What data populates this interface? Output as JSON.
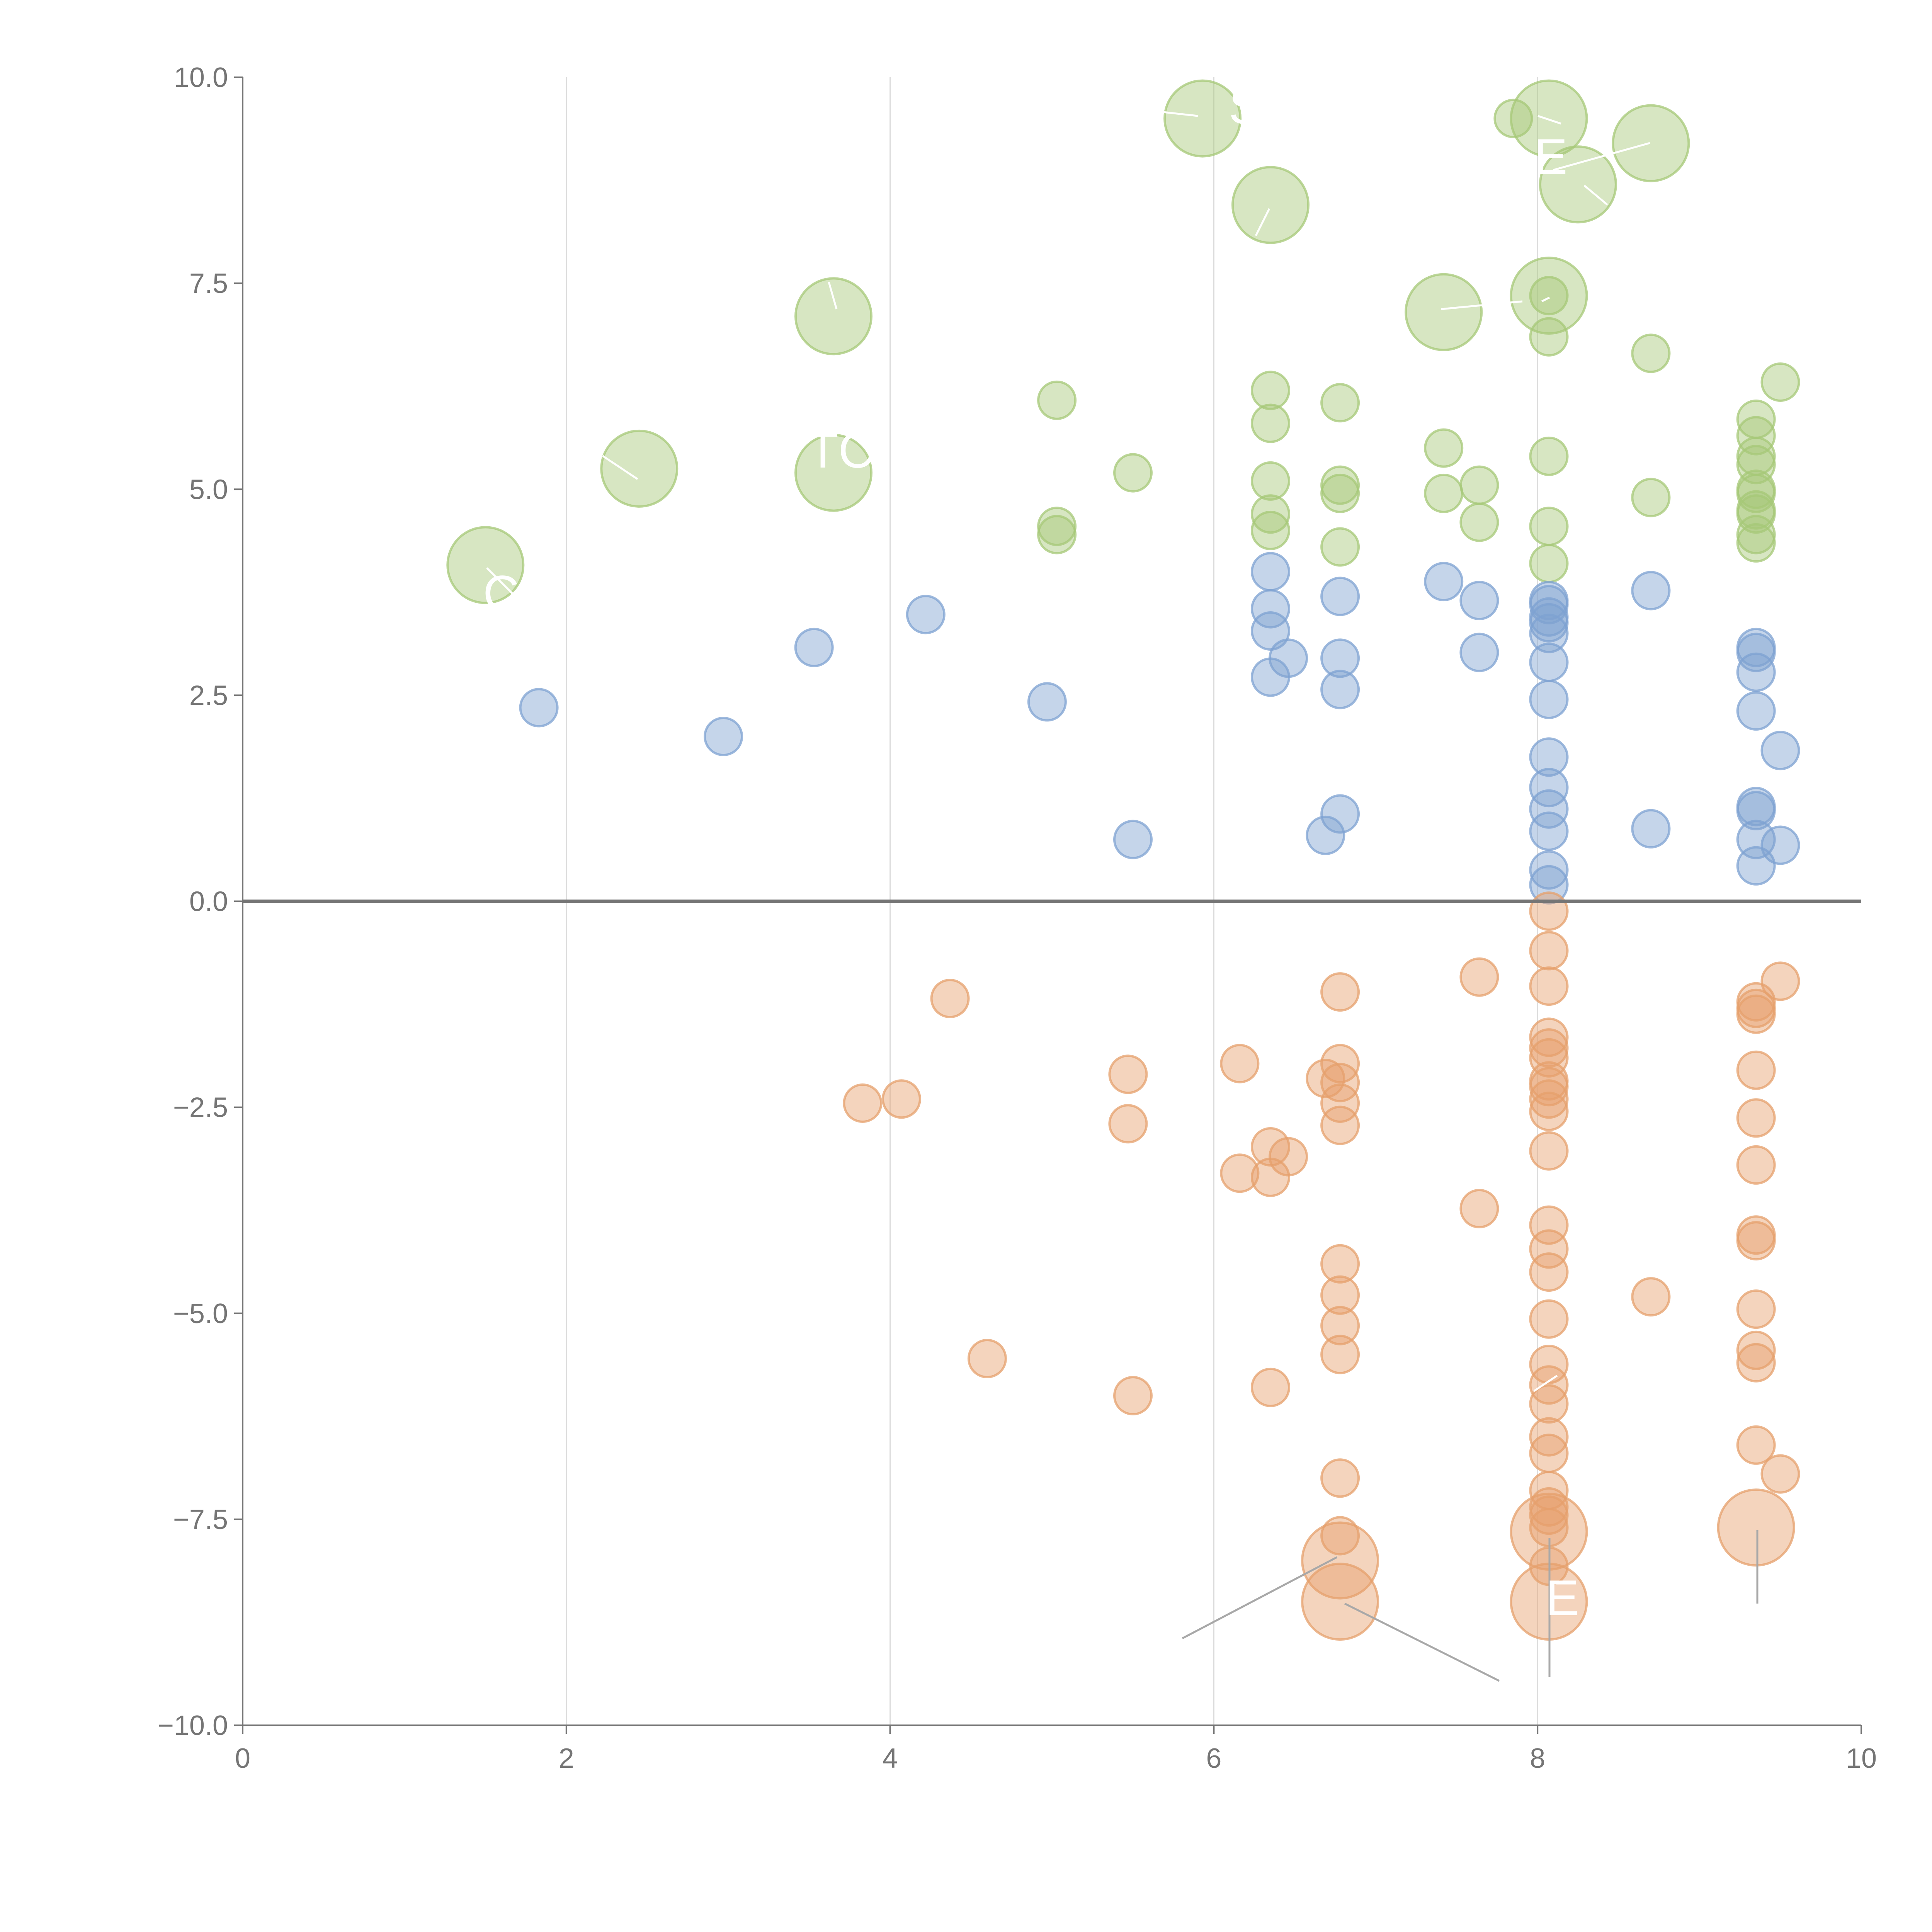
{
  "chart_data": {
    "type": "scatter",
    "title": "",
    "xlabel": "",
    "ylabel": "",
    "xlim": [
      0,
      10
    ],
    "ylim": [
      -10,
      10
    ],
    "grid": "vertical",
    "x_ticks": [
      "0",
      "2",
      "4",
      "6",
      "8",
      "10"
    ],
    "y_ticks": [
      "−10.0",
      "−7.5",
      "−5.0",
      "−2.5",
      "0.0",
      "2.5",
      "5.0",
      "7.5",
      "10.0"
    ],
    "colors": {
      "green": "#a6c877",
      "blue": "#7ea1d1",
      "orange": "#e6a06c"
    },
    "callout_labels": [
      "S",
      "E",
      "TC",
      "C",
      "E"
    ],
    "series": [
      {
        "name": "green",
        "color": "#a6c877",
        "points": [
          [
            5.93,
            9.5,
            "l"
          ],
          [
            7.85,
            9.5,
            "s"
          ],
          [
            8.07,
            9.5,
            "l"
          ],
          [
            8.7,
            9.2,
            "l"
          ],
          [
            8.25,
            8.7,
            "l"
          ],
          [
            6.35,
            8.45,
            "l"
          ],
          [
            3.65,
            7.1,
            "l"
          ],
          [
            7.42,
            7.15,
            "l"
          ],
          [
            8.07,
            7.35,
            "l"
          ],
          [
            8.07,
            7.35,
            "s"
          ],
          [
            8.07,
            6.85,
            "s"
          ],
          [
            8.7,
            6.65,
            "s"
          ],
          [
            9.5,
            6.3,
            "s"
          ],
          [
            5.03,
            6.08,
            "s"
          ],
          [
            6.35,
            6.2,
            "s"
          ],
          [
            6.78,
            6.05,
            "s"
          ],
          [
            6.35,
            5.8,
            "s"
          ],
          [
            9.35,
            5.85,
            "s"
          ],
          [
            9.35,
            5.65,
            "s"
          ],
          [
            2.45,
            5.25,
            "l"
          ],
          [
            3.65,
            5.2,
            "l"
          ],
          [
            5.5,
            5.2,
            "s"
          ],
          [
            6.35,
            5.1,
            "s"
          ],
          [
            6.78,
            5.05,
            "s"
          ],
          [
            6.78,
            4.95,
            "s"
          ],
          [
            7.42,
            5.5,
            "s"
          ],
          [
            7.42,
            4.95,
            "s"
          ],
          [
            7.64,
            5.05,
            "s"
          ],
          [
            7.64,
            4.6,
            "s"
          ],
          [
            8.07,
            5.4,
            "s"
          ],
          [
            8.7,
            4.9,
            "s"
          ],
          [
            9.35,
            5.4,
            "s"
          ],
          [
            9.35,
            5.3,
            "s"
          ],
          [
            9.35,
            5.0,
            "s"
          ],
          [
            9.35,
            4.95,
            "s"
          ],
          [
            9.35,
            4.75,
            "s"
          ],
          [
            9.35,
            4.7,
            "s"
          ],
          [
            9.35,
            4.45,
            "s"
          ],
          [
            9.35,
            4.35,
            "s"
          ],
          [
            5.03,
            4.55,
            "s"
          ],
          [
            5.03,
            4.45,
            "s"
          ],
          [
            6.35,
            4.7,
            "s"
          ],
          [
            6.35,
            4.5,
            "s"
          ],
          [
            6.78,
            4.3,
            "s"
          ],
          [
            8.07,
            4.55,
            "s"
          ],
          [
            8.07,
            4.1,
            "s"
          ],
          [
            1.5,
            4.08,
            "l"
          ]
        ]
      },
      {
        "name": "blue",
        "color": "#7ea1d1",
        "points": [
          [
            1.83,
            2.35,
            "s"
          ],
          [
            2.97,
            2.0,
            "s"
          ],
          [
            3.53,
            3.08,
            "s"
          ],
          [
            4.22,
            3.48,
            "s"
          ],
          [
            4.97,
            2.42,
            "s"
          ],
          [
            5.5,
            0.75,
            "s"
          ],
          [
            6.35,
            4.0,
            "s"
          ],
          [
            6.35,
            3.55,
            "s"
          ],
          [
            6.35,
            3.28,
            "s"
          ],
          [
            6.46,
            2.95,
            "s"
          ],
          [
            6.35,
            2.72,
            "s"
          ],
          [
            6.78,
            3.7,
            "s"
          ],
          [
            6.78,
            2.95,
            "s"
          ],
          [
            6.78,
            2.57,
            "s"
          ],
          [
            6.78,
            1.06,
            "s"
          ],
          [
            6.69,
            0.8,
            "s"
          ],
          [
            7.42,
            3.88,
            "s"
          ],
          [
            7.64,
            3.65,
            "s"
          ],
          [
            7.64,
            3.02,
            "s"
          ],
          [
            8.07,
            3.65,
            "s"
          ],
          [
            8.07,
            3.6,
            "s"
          ],
          [
            8.07,
            3.45,
            "s"
          ],
          [
            8.07,
            3.38,
            "s"
          ],
          [
            8.07,
            3.25,
            "s"
          ],
          [
            8.07,
            2.9,
            "s"
          ],
          [
            8.07,
            2.45,
            "s"
          ],
          [
            8.07,
            1.75,
            "s"
          ],
          [
            8.07,
            1.38,
            "s"
          ],
          [
            8.07,
            1.12,
            "s"
          ],
          [
            8.07,
            0.85,
            "s"
          ],
          [
            8.07,
            0.38,
            "s"
          ],
          [
            8.07,
            0.2,
            "s"
          ],
          [
            8.7,
            3.77,
            "s"
          ],
          [
            8.7,
            0.88,
            "s"
          ],
          [
            9.35,
            3.08,
            "s"
          ],
          [
            9.35,
            3.02,
            "s"
          ],
          [
            9.35,
            2.78,
            "s"
          ],
          [
            9.35,
            2.31,
            "s"
          ],
          [
            9.5,
            1.83,
            "s"
          ],
          [
            9.35,
            1.15,
            "s"
          ],
          [
            9.35,
            1.1,
            "s"
          ],
          [
            9.35,
            0.75,
            "s"
          ],
          [
            9.5,
            0.68,
            "s"
          ],
          [
            9.35,
            0.43,
            "s"
          ]
        ]
      },
      {
        "name": "orange",
        "color": "#e6a06c",
        "points": [
          [
            4.37,
            -1.18,
            "s"
          ],
          [
            3.83,
            -2.45,
            "s"
          ],
          [
            4.07,
            -2.4,
            "s"
          ],
          [
            4.6,
            -5.55,
            "s"
          ],
          [
            5.47,
            -2.1,
            "s"
          ],
          [
            5.47,
            -2.7,
            "s"
          ],
          [
            5.5,
            -6.0,
            "s"
          ],
          [
            6.16,
            -1.97,
            "s"
          ],
          [
            6.16,
            -3.3,
            "s"
          ],
          [
            6.35,
            -2.98,
            "s"
          ],
          [
            6.46,
            -3.1,
            "s"
          ],
          [
            6.35,
            -3.35,
            "s"
          ],
          [
            6.35,
            -5.9,
            "s"
          ],
          [
            6.69,
            -2.15,
            "s"
          ],
          [
            6.78,
            -1.1,
            "s"
          ],
          [
            6.78,
            -1.97,
            "s"
          ],
          [
            6.78,
            -2.2,
            "s"
          ],
          [
            6.78,
            -2.45,
            "s"
          ],
          [
            6.78,
            -2.72,
            "s"
          ],
          [
            6.78,
            -4.4,
            "s"
          ],
          [
            6.78,
            -4.78,
            "s"
          ],
          [
            6.78,
            -5.15,
            "s"
          ],
          [
            6.78,
            -5.5,
            "s"
          ],
          [
            6.78,
            -7.0,
            "s"
          ],
          [
            6.78,
            -7.7,
            "s"
          ],
          [
            6.78,
            -8.0,
            "l"
          ],
          [
            6.78,
            -8.5,
            "l"
          ],
          [
            7.64,
            -0.92,
            "s"
          ],
          [
            7.64,
            -3.73,
            "s"
          ],
          [
            8.07,
            -0.12,
            "s"
          ],
          [
            8.07,
            -0.6,
            "s"
          ],
          [
            8.07,
            -1.03,
            "s"
          ],
          [
            8.07,
            -1.65,
            "s"
          ],
          [
            8.07,
            -1.78,
            "s"
          ],
          [
            8.07,
            -1.9,
            "s"
          ],
          [
            8.07,
            -2.18,
            "s"
          ],
          [
            8.07,
            -2.25,
            "s"
          ],
          [
            8.07,
            -2.4,
            "s"
          ],
          [
            8.07,
            -2.55,
            "s"
          ],
          [
            8.07,
            -3.03,
            "s"
          ],
          [
            8.07,
            -3.93,
            "s"
          ],
          [
            8.07,
            -4.22,
            "s"
          ],
          [
            8.07,
            -4.5,
            "s"
          ],
          [
            8.07,
            -5.07,
            "s"
          ],
          [
            8.07,
            -5.62,
            "s"
          ],
          [
            8.07,
            -5.87,
            "s"
          ],
          [
            8.07,
            -6.1,
            "s"
          ],
          [
            8.07,
            -6.5,
            "s"
          ],
          [
            8.07,
            -6.7,
            "s"
          ],
          [
            8.07,
            -7.15,
            "s"
          ],
          [
            8.07,
            -7.35,
            "s"
          ],
          [
            8.07,
            -7.45,
            "s"
          ],
          [
            8.07,
            -7.6,
            "s"
          ],
          [
            8.07,
            -7.65,
            "l"
          ],
          [
            8.07,
            -8.07,
            "s"
          ],
          [
            8.07,
            -8.5,
            "l"
          ],
          [
            8.7,
            -4.8,
            "s"
          ],
          [
            9.5,
            -0.97,
            "s"
          ],
          [
            9.35,
            -1.22,
            "s"
          ],
          [
            9.35,
            -1.3,
            "s"
          ],
          [
            9.35,
            -1.37,
            "s"
          ],
          [
            9.35,
            -2.05,
            "s"
          ],
          [
            9.35,
            -2.63,
            "s"
          ],
          [
            9.35,
            -3.2,
            "s"
          ],
          [
            9.35,
            -4.05,
            "s"
          ],
          [
            9.35,
            -4.12,
            "s"
          ],
          [
            9.35,
            -4.95,
            "s"
          ],
          [
            9.35,
            -5.45,
            "s"
          ],
          [
            9.35,
            -5.6,
            "s"
          ],
          [
            9.35,
            -6.6,
            "s"
          ],
          [
            9.5,
            -6.95,
            "s"
          ],
          [
            9.35,
            -7.6,
            "l"
          ]
        ]
      }
    ]
  }
}
